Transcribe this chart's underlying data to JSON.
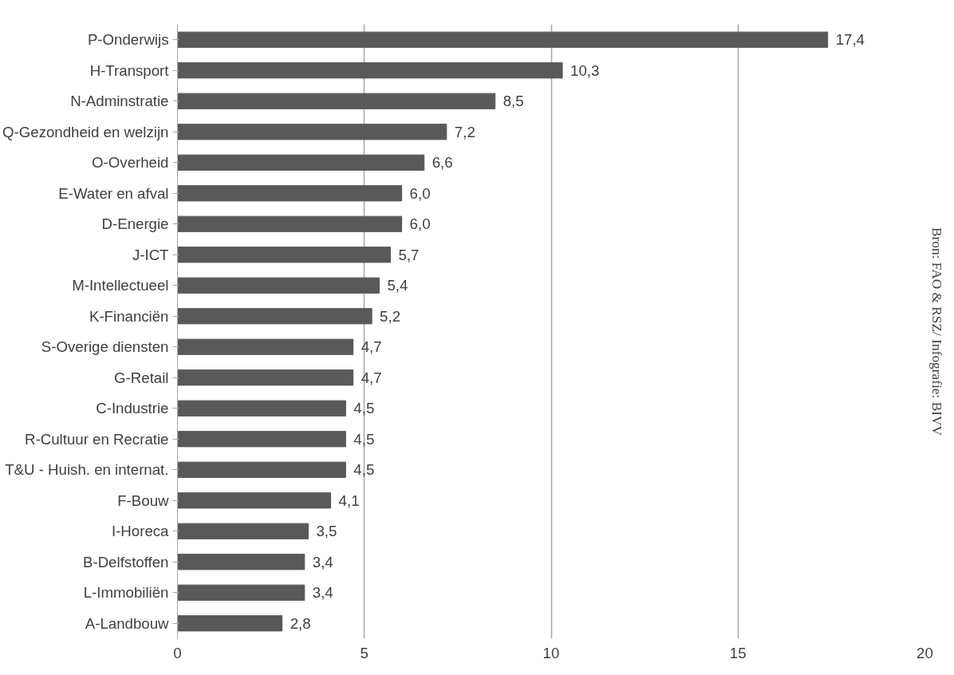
{
  "chart_data": {
    "type": "bar",
    "orientation": "horizontal",
    "categories": [
      "P-Onderwijs",
      "H-Transport",
      "N-Adminstratie",
      "Q-Gezondheid en welzijn",
      "O-Overheid",
      "E-Water en afval",
      "D-Energie",
      "J-ICT",
      "M-Intellectueel",
      "K-Financiën",
      "S-Overige diensten",
      "G-Retail",
      "C-Industrie",
      "R-Cultuur en Recratie",
      "T&U - Huish. en internat.",
      "F-Bouw",
      "I-Horeca",
      "B-Delfstoffen",
      "L-Immobiliën",
      "A-Landbouw"
    ],
    "values": [
      17.4,
      10.3,
      8.5,
      7.2,
      6.6,
      6.0,
      6.0,
      5.7,
      5.4,
      5.2,
      4.7,
      4.7,
      4.5,
      4.5,
      4.5,
      4.1,
      3.5,
      3.4,
      3.4,
      2.8
    ],
    "value_labels": [
      "17,4",
      "10,3",
      "8,5",
      "7,2",
      "6,6",
      "6,0",
      "6,0",
      "5,7",
      "5,4",
      "5,2",
      "4,7",
      "4,7",
      "4,5",
      "4,5",
      "4,5",
      "4,1",
      "3,5",
      "3,4",
      "3,4",
      "2,8"
    ],
    "color": "#595959",
    "xlim": [
      0,
      20
    ],
    "xticks": [
      0,
      5,
      10,
      15,
      20
    ],
    "grid": "x",
    "annotations": [
      "Bron: FAO & RSZ/ Infografie: BIVV"
    ]
  }
}
